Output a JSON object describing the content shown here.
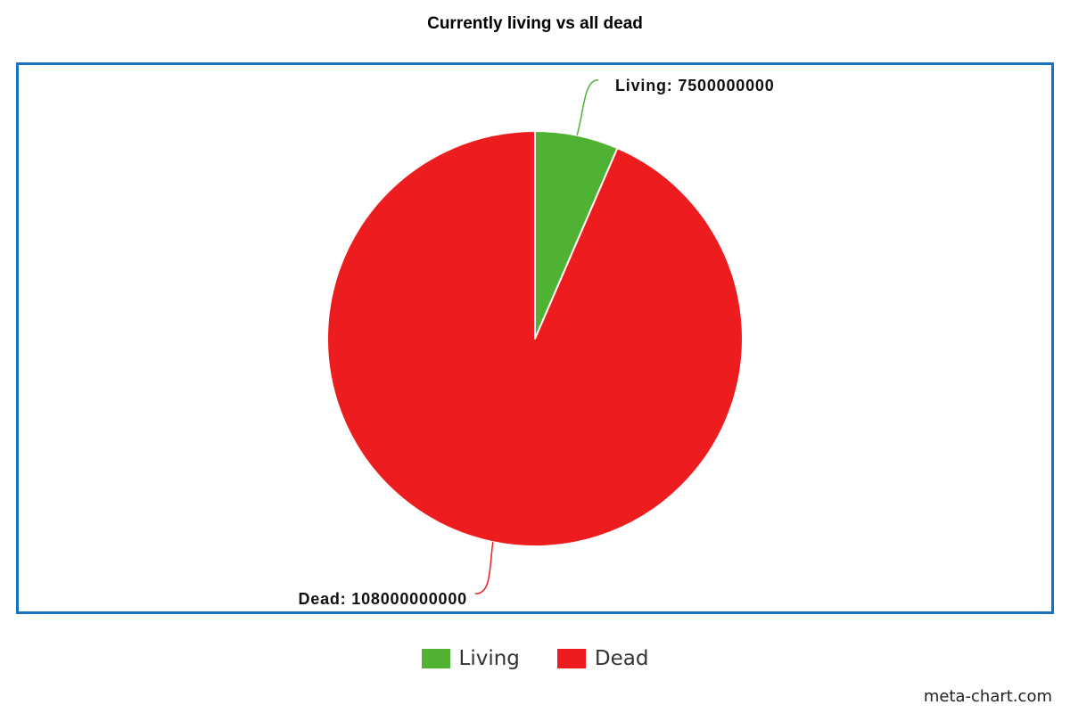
{
  "chart_data": {
    "type": "pie",
    "title": "Currently living vs all dead",
    "slices": [
      {
        "name": "Living",
        "value": 7500000000,
        "label": "Living: 7500000000",
        "color": "#4fb233"
      },
      {
        "name": "Dead",
        "value": 108000000000,
        "label": "Dead: 108000000000",
        "color": "#ed1c1f"
      }
    ],
    "legend": {
      "placement": "bottom-center",
      "entries": [
        "Living",
        "Dead"
      ]
    }
  },
  "watermark": "meta-chart.com"
}
